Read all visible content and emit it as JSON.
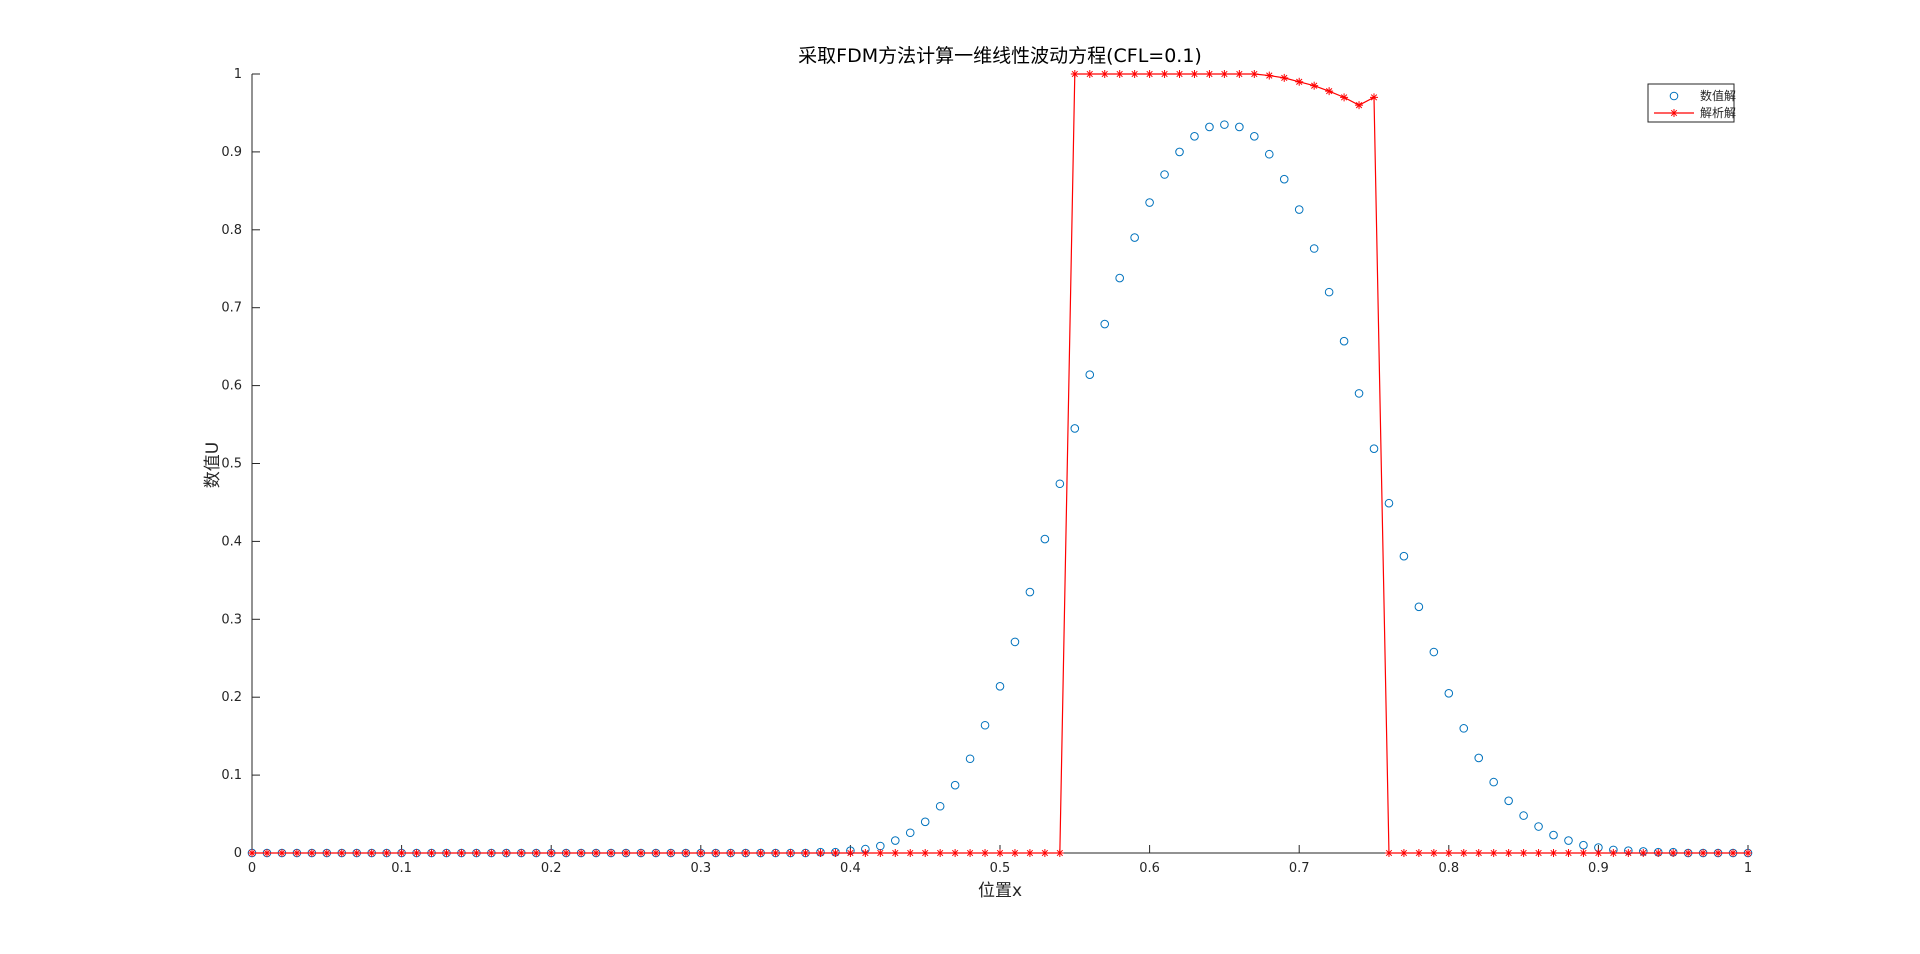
{
  "chart_data": {
    "type": "line",
    "title": "采取FDM方法计算一维线性波动方程(CFL=0.1)",
    "xlabel": "位置x",
    "ylabel": "数值U",
    "xlim": [
      0,
      1
    ],
    "ylim": [
      0,
      1
    ],
    "xticks": [
      "0",
      "0.1",
      "0.2",
      "0.3",
      "0.4",
      "0.5",
      "0.6",
      "0.7",
      "0.8",
      "0.9",
      "1"
    ],
    "yticks": [
      "0",
      "0.1",
      "0.2",
      "0.3",
      "0.4",
      "0.5",
      "0.6",
      "0.7",
      "0.8",
      "0.9",
      "1"
    ],
    "grid": false,
    "legend_position": "top-right",
    "x": [
      0.0,
      0.01,
      0.02,
      0.03,
      0.04,
      0.05,
      0.06,
      0.07,
      0.08,
      0.09,
      0.1,
      0.11,
      0.12,
      0.13,
      0.14,
      0.15,
      0.16,
      0.17,
      0.18,
      0.19,
      0.2,
      0.21,
      0.22,
      0.23,
      0.24,
      0.25,
      0.26,
      0.27,
      0.28,
      0.29,
      0.3,
      0.31,
      0.32,
      0.33,
      0.34,
      0.35,
      0.36,
      0.37,
      0.38,
      0.39,
      0.4,
      0.41,
      0.42,
      0.43,
      0.44,
      0.45,
      0.46,
      0.47,
      0.48,
      0.49,
      0.5,
      0.51,
      0.52,
      0.53,
      0.54,
      0.55,
      0.56,
      0.57,
      0.58,
      0.59,
      0.6,
      0.61,
      0.62,
      0.63,
      0.64,
      0.65,
      0.66,
      0.67,
      0.68,
      0.69,
      0.7,
      0.71,
      0.72,
      0.73,
      0.74,
      0.75,
      0.76,
      0.77,
      0.78,
      0.79,
      0.8,
      0.81,
      0.82,
      0.83,
      0.84,
      0.85,
      0.86,
      0.87,
      0.88,
      0.89,
      0.9,
      0.91,
      0.92,
      0.93,
      0.94,
      0.95,
      0.96,
      0.97,
      0.98,
      0.99,
      1.0
    ],
    "series": [
      {
        "name": "数值解",
        "marker": "circle",
        "line": false,
        "color": "#0072BD",
        "values": [
          0,
          0,
          0,
          0,
          0,
          0,
          0,
          0,
          0,
          0,
          0,
          0,
          0,
          0,
          0,
          0,
          0,
          0,
          0,
          0,
          0,
          0,
          0,
          0,
          0,
          0,
          0,
          0,
          0,
          0,
          0,
          0,
          0,
          0,
          0,
          0,
          0,
          0,
          0.001,
          0.001,
          0.003,
          0.005,
          0.009,
          0.016,
          0.026,
          0.04,
          0.06,
          0.087,
          0.121,
          0.164,
          0.214,
          0.271,
          0.335,
          0.403,
          0.474,
          0.545,
          0.614,
          0.679,
          0.738,
          0.79,
          0.835,
          0.871,
          0.9,
          0.92,
          0.932,
          0.935,
          0.932,
          0.92,
          0.897,
          0.865,
          0.826,
          0.776,
          0.72,
          0.657,
          0.59,
          0.519,
          0.449,
          0.381,
          0.316,
          0.258,
          0.205,
          0.16,
          0.122,
          0.091,
          0.067,
          0.048,
          0.034,
          0.023,
          0.016,
          0.01,
          0.007,
          0.004,
          0.003,
          0.002,
          0.001,
          0.001,
          0,
          0,
          0,
          0,
          0
        ]
      },
      {
        "name": "解析解",
        "marker": "star",
        "line": true,
        "color": "#FF0000",
        "values": [
          0,
          0,
          0,
          0,
          0,
          0,
          0,
          0,
          0,
          0,
          0,
          0,
          0,
          0,
          0,
          0,
          0,
          0,
          0,
          0,
          0,
          0,
          0,
          0,
          0,
          0,
          0,
          0,
          0,
          0,
          0,
          0,
          0,
          0,
          0,
          0,
          0,
          0,
          0,
          0,
          0,
          0,
          0,
          0,
          0,
          0,
          0,
          0,
          0,
          0,
          0,
          0,
          0,
          0,
          0,
          1,
          1,
          1,
          1,
          1,
          1,
          1,
          1,
          1,
          1,
          1,
          1,
          1,
          0.998,
          0.995,
          0.99,
          0.985,
          0.978,
          0.97,
          0.96,
          0.97,
          0,
          0,
          0,
          0,
          0,
          0,
          0,
          0,
          0,
          0,
          0,
          0,
          0,
          0,
          0,
          0,
          0,
          0,
          0,
          0,
          0,
          0,
          0,
          0,
          0
        ]
      }
    ]
  }
}
